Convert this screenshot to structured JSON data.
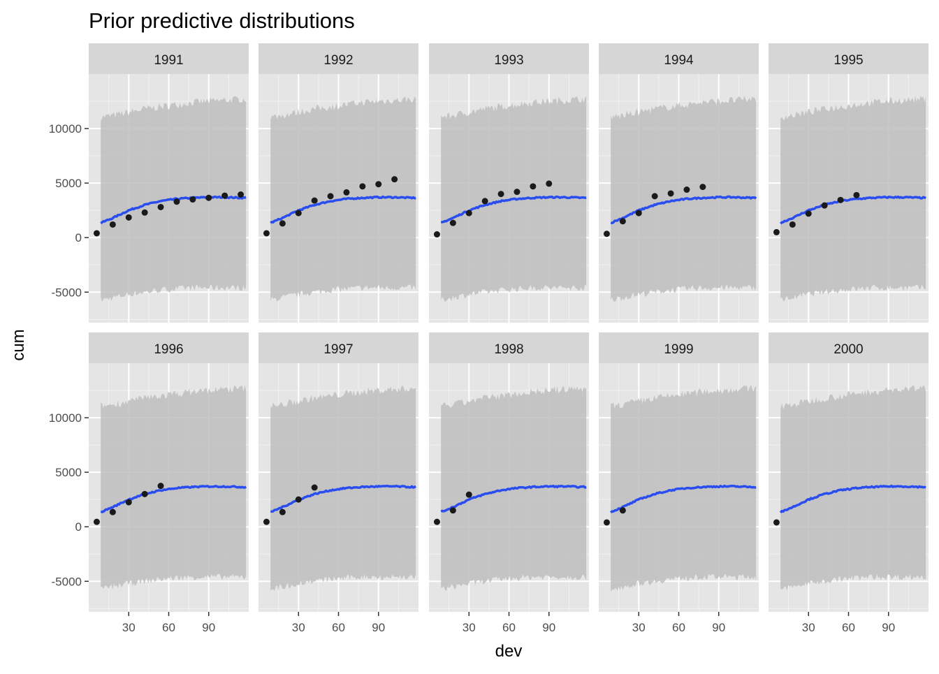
{
  "chart_data": {
    "type": "line",
    "title": "Prior predictive distributions",
    "xlabel": "dev",
    "ylabel": "cum",
    "xlim": [
      0,
      120
    ],
    "ylim": [
      -7800,
      15000
    ],
    "x_ticks": [
      30,
      60,
      90
    ],
    "y_ticks": [
      -5000,
      0,
      5000,
      10000
    ],
    "y_tick_labels": [
      "-5000",
      "0",
      "5000",
      "10000"
    ],
    "x_tick_labels": [
      "30",
      "60",
      "90"
    ],
    "grid": true,
    "facet_rows": 2,
    "facet_cols": 5,
    "colors": {
      "panel_background": "#e5e5e5",
      "strip_background": "#d6d6d6",
      "ribbon": "#bebebe",
      "mean_line": "#2a4df0",
      "points": "#1a1a1a"
    },
    "series_x": [
      6,
      18,
      30,
      42,
      54,
      66,
      78,
      90,
      102,
      114
    ],
    "mean_curve": [
      1200,
      1800,
      2500,
      3000,
      3350,
      3550,
      3650,
      3700,
      3700,
      3650
    ],
    "ribbon_lower": [
      -5800,
      -5500,
      -5200,
      -5000,
      -4800,
      -4700,
      -4600,
      -4600,
      -4600,
      -4600
    ],
    "ribbon_upper": [
      11000,
      11200,
      11500,
      11800,
      12000,
      12200,
      12400,
      12500,
      12600,
      12700
    ],
    "panels": [
      {
        "label": "1991",
        "points": [
          [
            6,
            400
          ],
          [
            18,
            1200
          ],
          [
            30,
            1850
          ],
          [
            42,
            2300
          ],
          [
            54,
            2800
          ],
          [
            66,
            3300
          ],
          [
            78,
            3500
          ],
          [
            90,
            3650
          ],
          [
            102,
            3850
          ],
          [
            114,
            3950
          ]
        ]
      },
      {
        "label": "1992",
        "points": [
          [
            6,
            400
          ],
          [
            18,
            1300
          ],
          [
            30,
            2250
          ],
          [
            42,
            3400
          ],
          [
            54,
            3800
          ],
          [
            66,
            4150
          ],
          [
            78,
            4700
          ],
          [
            90,
            4900
          ],
          [
            102,
            5350
          ]
        ]
      },
      {
        "label": "1993",
        "points": [
          [
            6,
            300
          ],
          [
            18,
            1350
          ],
          [
            30,
            2250
          ],
          [
            42,
            3350
          ],
          [
            54,
            4000
          ],
          [
            66,
            4200
          ],
          [
            78,
            4700
          ],
          [
            90,
            4950
          ]
        ]
      },
      {
        "label": "1994",
        "points": [
          [
            6,
            350
          ],
          [
            18,
            1500
          ],
          [
            30,
            2250
          ],
          [
            42,
            3800
          ],
          [
            54,
            4050
          ],
          [
            66,
            4400
          ],
          [
            78,
            4650
          ]
        ]
      },
      {
        "label": "1995",
        "points": [
          [
            6,
            500
          ],
          [
            18,
            1200
          ],
          [
            30,
            2200
          ],
          [
            42,
            2950
          ],
          [
            54,
            3450
          ],
          [
            66,
            3900
          ]
        ]
      },
      {
        "label": "1996",
        "points": [
          [
            6,
            450
          ],
          [
            18,
            1350
          ],
          [
            30,
            2250
          ],
          [
            42,
            3000
          ],
          [
            54,
            3750
          ]
        ]
      },
      {
        "label": "1997",
        "points": [
          [
            6,
            450
          ],
          [
            18,
            1350
          ],
          [
            30,
            2500
          ],
          [
            42,
            3600
          ]
        ]
      },
      {
        "label": "1998",
        "points": [
          [
            6,
            450
          ],
          [
            18,
            1500
          ],
          [
            30,
            2950
          ]
        ]
      },
      {
        "label": "1999",
        "points": [
          [
            6,
            400
          ],
          [
            18,
            1500
          ]
        ]
      },
      {
        "label": "2000",
        "points": [
          [
            6,
            400
          ]
        ]
      }
    ]
  }
}
